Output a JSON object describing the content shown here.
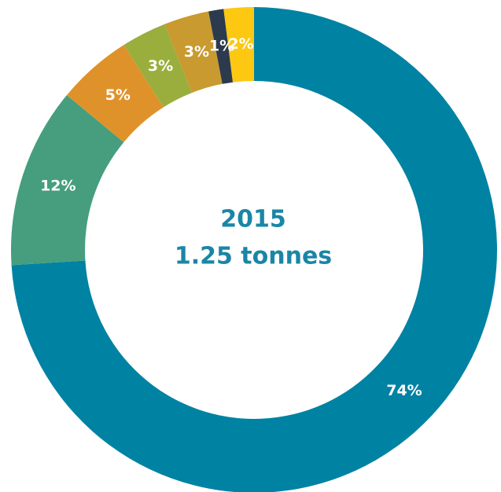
{
  "chart_data": {
    "type": "donut",
    "values": [
      74,
      12,
      5,
      3,
      3,
      1,
      2
    ],
    "value_labels": [
      "74%",
      "12%",
      "5%",
      "3%",
      "3%",
      "1%",
      "2%"
    ],
    "colors": [
      "#0082a3",
      "#469e7e",
      "#e0922a",
      "#9aae3e",
      "#c89a30",
      "#2c3a4e",
      "#fcc812"
    ],
    "center_text": [
      "2015",
      "1.25 tonnes"
    ]
  }
}
